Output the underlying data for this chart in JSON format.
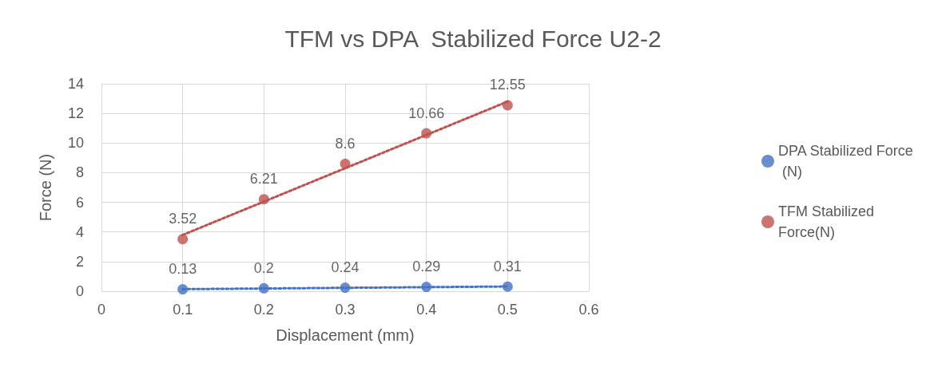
{
  "chart_data": {
    "type": "scatter",
    "title": "TFM vs DPA  Stabilized Force U2-2",
    "xlabel": "Displacement (mm)",
    "ylabel": "Force (N)",
    "x": [
      0.1,
      0.2,
      0.3,
      0.4,
      0.5
    ],
    "series": [
      {
        "name": "DPA Stabilized Force (N)",
        "color": "#4472c4",
        "values": [
          0.13,
          0.2,
          0.24,
          0.29,
          0.31
        ],
        "value_labels": [
          "0.13",
          "0.2",
          "0.24",
          "0.29",
          "0.31"
        ]
      },
      {
        "name": "TFM Stabilized Force(N)",
        "color": "#c0504d",
        "values": [
          3.52,
          6.21,
          8.6,
          10.66,
          12.55
        ],
        "value_labels": [
          "3.52",
          "6.21",
          "8.6",
          "10.66",
          "12.55"
        ]
      },
      {
        "type": "line",
        "color": "#4472c4",
        "x": [
          0.1,
          0.3,
          0.5
        ],
        "values": [
          0.14,
          0.23,
          0.32
        ],
        "line_style": "dotted",
        "marker": "none"
      },
      {
        "type": "line",
        "color": "#c0504d",
        "x": [
          0.1,
          0.3,
          0.5
        ],
        "values": [
          3.8,
          8.3,
          12.8
        ],
        "line_style": "dotted",
        "marker": "none"
      }
    ],
    "xlim": [
      0,
      0.6
    ],
    "xticks": [
      0,
      0.1,
      0.2,
      0.3,
      0.4,
      0.5,
      0.6
    ],
    "ylim": [
      0,
      14
    ],
    "yticks": [
      0,
      2,
      4,
      6,
      8,
      10,
      12,
      14
    ],
    "grid": true,
    "legend": "right",
    "marker": "circle"
  }
}
